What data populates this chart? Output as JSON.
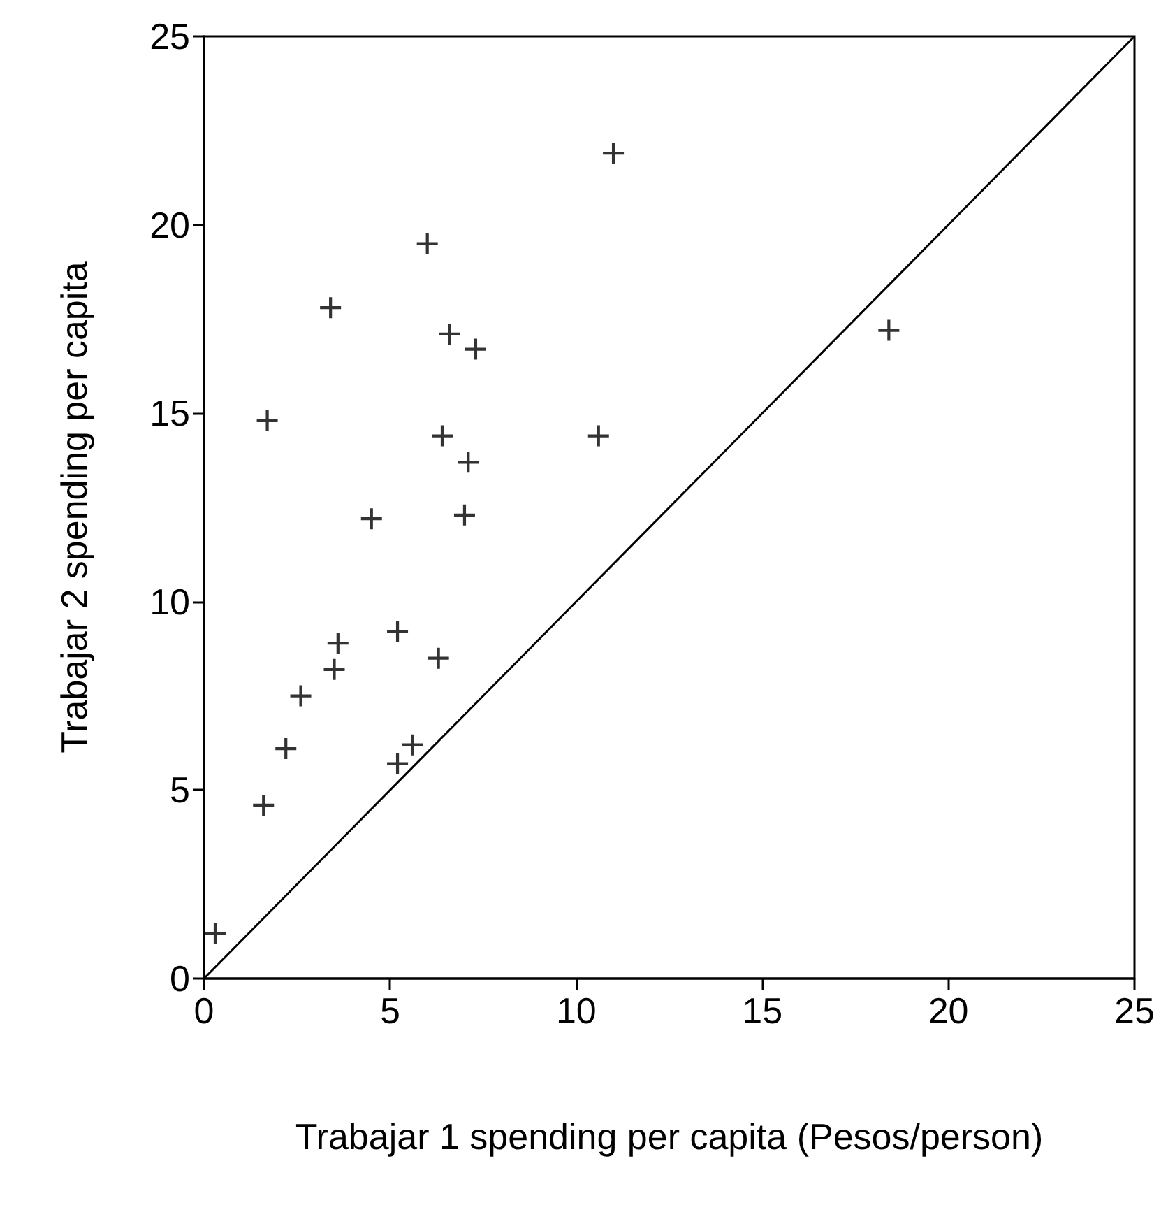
{
  "chart_data": {
    "type": "scatter",
    "xlabel": "Trabajar 1 spending per capita (Pesos/person)",
    "ylabel": "Trabajar 2 spending per capita",
    "xlim": [
      0,
      25
    ],
    "ylim": [
      0,
      25
    ],
    "xticks": [
      0,
      5,
      10,
      15,
      20,
      25
    ],
    "yticks": [
      0,
      5,
      10,
      15,
      20,
      25
    ],
    "marker": "cross",
    "series": [
      {
        "color": "#000000",
        "x": [
          0.3,
          1.6,
          2.2,
          2.6,
          3.5,
          3.6,
          3.4,
          1.7,
          4.5,
          6.0,
          5.2,
          5.2,
          5.6,
          6.3,
          6.4,
          6.6,
          7.3,
          7.1,
          7.0,
          10.6,
          11.0,
          18.4
        ],
        "values": [
          1.2,
          4.6,
          6.1,
          7.5,
          8.2,
          8.9,
          17.8,
          14.8,
          12.2,
          19.5,
          9.2,
          5.7,
          6.2,
          8.5,
          14.4,
          17.1,
          16.7,
          13.7,
          12.3,
          14.4,
          21.9,
          17.2
        ]
      },
      {
        "type": "line",
        "color": "#000000",
        "x": [
          0,
          25
        ],
        "values": [
          0,
          25
        ],
        "marker": "none"
      }
    ]
  }
}
